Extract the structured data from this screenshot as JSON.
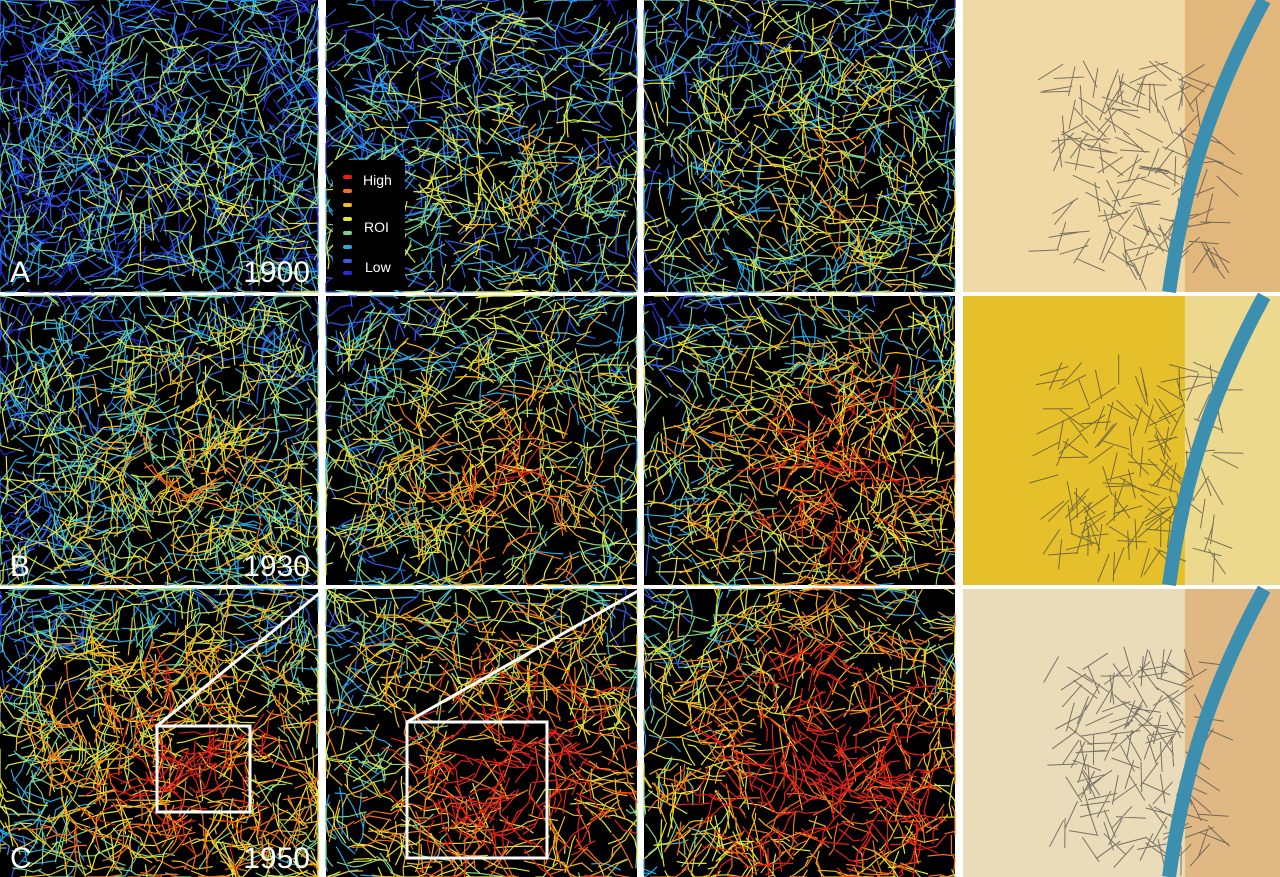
{
  "rows": [
    {
      "letter": "A",
      "year": "1900"
    },
    {
      "letter": "B",
      "year": "1930"
    },
    {
      "letter": "C",
      "year": "1950"
    }
  ],
  "legend": {
    "high": "High",
    "roi": "ROI",
    "low": "Low"
  }
}
